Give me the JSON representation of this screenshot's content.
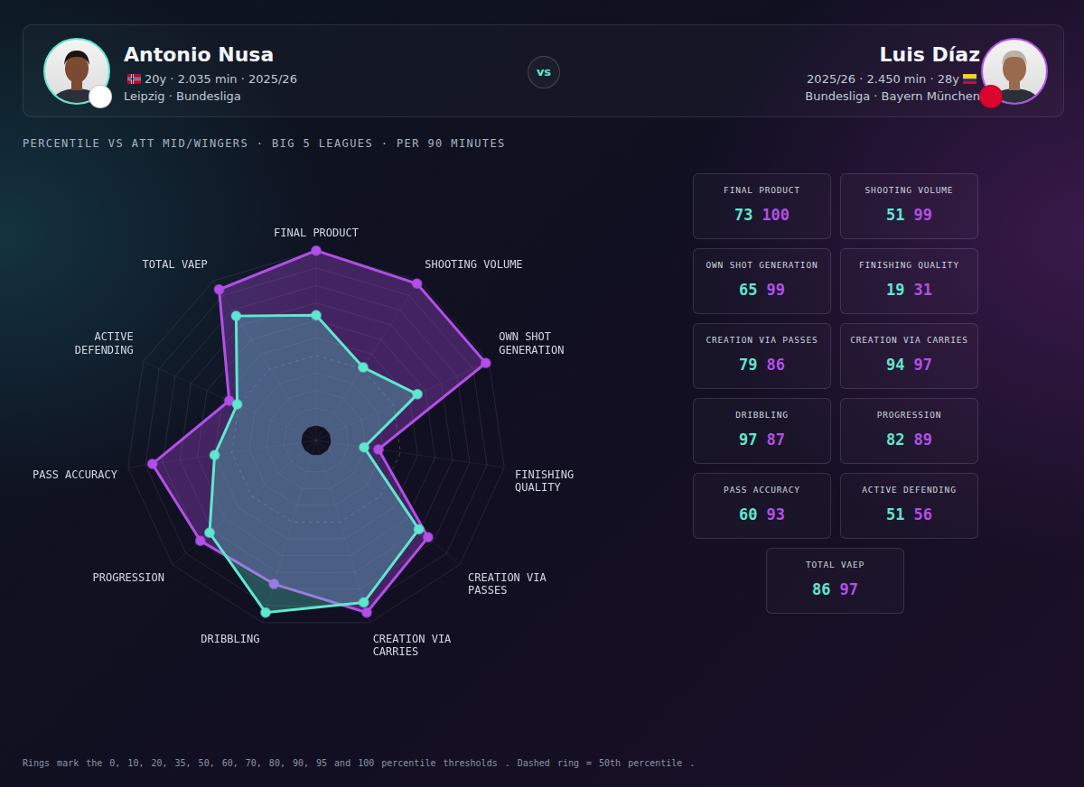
{
  "header": {
    "vs": "vs",
    "players": [
      {
        "meta": "20y · 2.035 min · 2025/26",
        "club": "Leipzig · Bundesliga"
      },
      {
        "meta": "2025/26 · 2.450 min · 28y",
        "club": "Bundesliga · Bayern München"
      }
    ]
  },
  "chart_data": {
    "type": "radar",
    "title": "PERCENTILE VS ATT MID/WINGERS · BIG 5 LEAGUES · PER 90 MINUTES",
    "categories": [
      "FINAL PRODUCT",
      "SHOOTING VOLUME",
      "OWN SHOT GENERATION",
      "FINISHING QUALITY",
      "CREATION VIA PASSES",
      "CREATION VIA CARRIES",
      "DRIBBLING",
      "PROGRESSION",
      "PASS ACCURACY",
      "ACTIVE DEFENDING",
      "TOTAL VAEP"
    ],
    "series": [
      {
        "name": "Antonio Nusa",
        "color": "#5ee8cf",
        "values": [
          73,
          51,
          65,
          19,
          79,
          94,
          97,
          82,
          60,
          51,
          86
        ]
      },
      {
        "name": "Luis Díaz",
        "color": "#b24fe8",
        "values": [
          100,
          99,
          99,
          31,
          86,
          97,
          87,
          89,
          93,
          56,
          97
        ]
      }
    ],
    "ylim": [
      0,
      100
    ],
    "yticks": [
      0,
      10,
      20,
      35,
      50,
      60,
      70,
      80,
      90,
      95,
      100
    ],
    "reference_value": 50,
    "grid": true,
    "tick_labels": false
  },
  "footnote": "Rings mark the 0, 10, 20, 35, 50, 60, 70, 80, 90, 95 and 100 percentile thresholds . Dashed ring = 50th percentile ."
}
